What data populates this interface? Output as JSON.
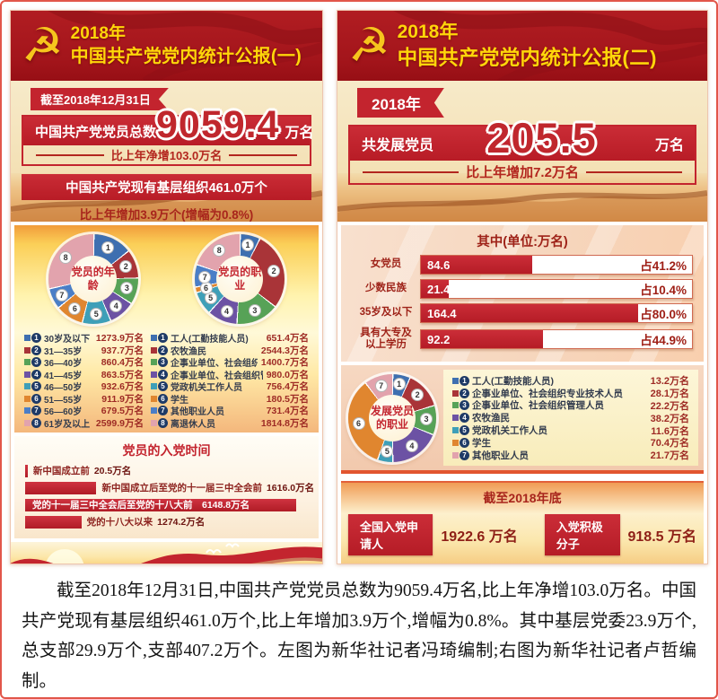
{
  "icons": {
    "party_emblem": "☭"
  },
  "palette": [
    "#3e6fb0",
    "#a93438",
    "#57a257",
    "#6c52a4",
    "#3e9fb8",
    "#e0862f",
    "#4a7ec7",
    "#e2a3ad"
  ],
  "legend_badge_color": "#1e3a66",
  "accent_red": "#c3242e",
  "title_yellow": "#ffd60a",
  "left_poster": {
    "year": "2018年",
    "title": "中国共产党党内统计公报(一)",
    "ribbon": "截至2018年12月31日",
    "total": {
      "label": "中国共产党党员总数",
      "value": "9059.4",
      "unit": "万名",
      "change": "比上年净增103.0万名"
    },
    "org": {
      "bar": "中国共产党现有基层组织461.0万个",
      "change": "比上年增加3.9万个(增幅为0.8%)"
    }
  },
  "right_poster": {
    "year": "2018年",
    "title": "中国共产党党内统计公报(二)",
    "ribbon": "2018年",
    "total": {
      "label": "共发展党员",
      "value": "205.5",
      "unit": "万名",
      "change": "比上年增加7.2万名"
    },
    "end": {
      "title": "截至2018年底",
      "items": [
        {
          "label": "全国入党申请人",
          "value": "1922.6 万名"
        },
        {
          "label": "入党积极分子",
          "value": "918.5 万名"
        }
      ]
    }
  },
  "chart_data": [
    {
      "id": "member-age-donut",
      "type": "pie",
      "title": "党员的年龄",
      "center_label": "党员的年龄",
      "unit": "万名",
      "labels": [
        "30岁及以下",
        "31—35岁",
        "36—40岁",
        "41—45岁",
        "46—50岁",
        "51—55岁",
        "56—60岁",
        "61岁及以上"
      ],
      "values": [
        1273.9,
        937.7,
        860.4,
        863.5,
        932.6,
        911.9,
        679.5,
        2599.9
      ],
      "value_labels": [
        "1273.9万名",
        "937.7万名",
        "860.4万名",
        "863.5万名",
        "932.6万名",
        "911.9万名",
        "679.5万名",
        "2599.9万名"
      ],
      "colors": [
        "#3e6fb0",
        "#a93438",
        "#57a257",
        "#6c52a4",
        "#3e9fb8",
        "#e0862f",
        "#4a7ec7",
        "#e2a3ad"
      ]
    },
    {
      "id": "member-occupation-donut",
      "type": "pie",
      "title": "党员的职业",
      "center_label": "党员的职业",
      "unit": "万名",
      "labels": [
        "工人(工勤技能人员)",
        "农牧渔民",
        "企事业单位、社会组织专业技术人员",
        "企事业单位、社会组织管理人员",
        "党政机关工作人员",
        "学生",
        "其他职业人员",
        "离退休人员"
      ],
      "values": [
        651.4,
        2544.3,
        1400.7,
        980.0,
        756.4,
        180.5,
        731.4,
        1814.8
      ],
      "value_labels": [
        "651.4万名",
        "2544.3万名",
        "1400.7万名",
        "980.0万名",
        "756.4万名",
        "180.5万名",
        "731.4万名",
        "1814.8万名"
      ],
      "colors": [
        "#3e6fb0",
        "#a93438",
        "#57a257",
        "#6c52a4",
        "#3e9fb8",
        "#e0862f",
        "#4a7ec7",
        "#e2a3ad"
      ]
    },
    {
      "id": "join-time-bars",
      "type": "bar",
      "title": "党员的入党时间",
      "unit": "万名",
      "categories": [
        "新中国成立前",
        "新中国成立后至党的十一届三中全会前",
        "党的十一届三中全会后至党的十八大前",
        "党的十八大以来"
      ],
      "values": [
        20.5,
        1616.0,
        6148.8,
        1274.2
      ],
      "value_labels": [
        "20.5万名",
        "1616.0万名",
        "6148.8万名",
        "1274.2万名"
      ],
      "bar_color": "#c3242e"
    },
    {
      "id": "develop-breakdown-bars",
      "type": "bar",
      "title": "其中(单位:万名)",
      "categories": [
        "女党员",
        "少数民族",
        "35岁及以下",
        "具有大专及\n以上学历"
      ],
      "values": [
        84.6,
        21.4,
        164.4,
        92.2
      ],
      "value_labels": [
        "84.6",
        "21.4",
        "164.4",
        "92.2"
      ],
      "percents": [
        41.2,
        10.4,
        80.0,
        44.9
      ],
      "percent_labels": [
        "占41.2%",
        "占10.4%",
        "占80.0%",
        "占44.9%"
      ],
      "bar_color": "#c3242e"
    },
    {
      "id": "develop-occupation-donut",
      "type": "pie",
      "title": "发展党员的职业",
      "center_label": "发展党员\n的职业",
      "unit": "万名",
      "labels": [
        "工人(工勤技能人员)",
        "企事业单位、社会组织专业技术人员",
        "企事业单位、社会组织管理人员",
        "农牧渔民",
        "党政机关工作人员",
        "学生",
        "其他职业人员"
      ],
      "values": [
        13.2,
        28.1,
        22.2,
        38.2,
        11.6,
        70.4,
        21.7
      ],
      "value_labels": [
        "13.2万名",
        "28.1万名",
        "22.2万名",
        "38.2万名",
        "11.6万名",
        "70.4万名",
        "21.7万名"
      ],
      "colors": [
        "#3e6fb0",
        "#a93438",
        "#57a257",
        "#6c52a4",
        "#3e9fb8",
        "#e0862f",
        "#e2a3ad"
      ]
    }
  ],
  "page": {
    "caption": "截至2018年12月31日,中国共产党党员总数为9059.4万名,比上年净增103.0万名。中国共产党现有基层组织461.0万个,比上年增加3.9万个,增幅为0.8%。其中基层党委23.9万个,总支部29.9万个,支部407.2万个。左图为新华社记者冯琦编制;右图为新华社记者卢哲编制。"
  }
}
